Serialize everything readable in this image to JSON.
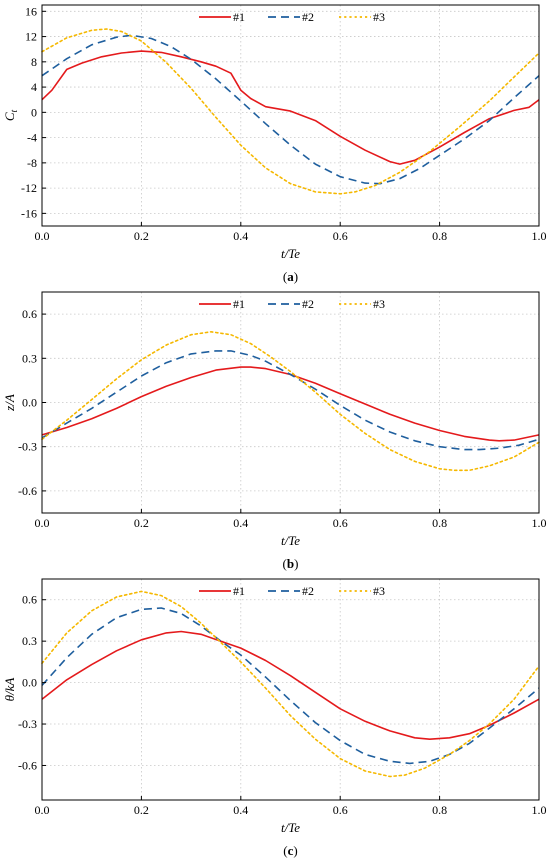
{
  "chart_data": [
    {
      "type": "line",
      "panel_label": "(a)",
      "panel_letter": "a",
      "xlabel": "t/Te",
      "ylabel": "C",
      "ylabel_sub": "t",
      "xlim": [
        0.0,
        1.0
      ],
      "ylim": [
        -18,
        17
      ],
      "xticks": [
        "0.0",
        "0.2",
        "0.4",
        "0.6",
        "0.8",
        "1.0"
      ],
      "yticks": [
        "16",
        "12",
        "8",
        "4",
        "0",
        "-4",
        "-8",
        "-12",
        "-16"
      ],
      "grid": true,
      "legend": "top-center",
      "series": [
        {
          "name": "#1",
          "color": "#e41a1c",
          "style": "solid",
          "x": [
            0.0,
            0.02,
            0.05,
            0.08,
            0.12,
            0.16,
            0.2,
            0.24,
            0.28,
            0.32,
            0.35,
            0.38,
            0.4,
            0.42,
            0.45,
            0.5,
            0.55,
            0.6,
            0.65,
            0.7,
            0.72,
            0.75,
            0.8,
            0.85,
            0.9,
            0.95,
            0.98,
            1.0
          ],
          "y": [
            2.0,
            3.5,
            6.8,
            7.8,
            8.8,
            9.4,
            9.7,
            9.5,
            8.8,
            8.0,
            7.3,
            6.2,
            3.5,
            2.2,
            0.9,
            0.2,
            -1.3,
            -3.8,
            -6.0,
            -7.8,
            -8.2,
            -7.6,
            -5.5,
            -3.2,
            -1.0,
            0.3,
            0.8,
            2.0
          ]
        },
        {
          "name": "#2",
          "color": "#1f5f9e",
          "style": "dashed",
          "x": [
            0.0,
            0.05,
            0.1,
            0.15,
            0.18,
            0.22,
            0.26,
            0.3,
            0.35,
            0.4,
            0.45,
            0.5,
            0.55,
            0.6,
            0.65,
            0.68,
            0.72,
            0.76,
            0.8,
            0.85,
            0.9,
            0.95,
            1.0
          ],
          "y": [
            5.8,
            8.5,
            10.7,
            11.9,
            12.2,
            11.7,
            10.4,
            8.4,
            5.3,
            1.8,
            -1.8,
            -5.2,
            -8.2,
            -10.2,
            -11.2,
            -11.3,
            -10.5,
            -8.9,
            -6.8,
            -4.2,
            -1.3,
            2.3,
            5.8
          ]
        },
        {
          "name": "#3",
          "color": "#f5b800",
          "style": "dotted",
          "x": [
            0.0,
            0.05,
            0.1,
            0.13,
            0.16,
            0.2,
            0.25,
            0.3,
            0.35,
            0.4,
            0.45,
            0.5,
            0.55,
            0.6,
            0.63,
            0.67,
            0.72,
            0.78,
            0.84,
            0.9,
            0.95,
            1.0
          ],
          "y": [
            9.6,
            11.8,
            13.0,
            13.2,
            12.8,
            11.3,
            7.9,
            3.8,
            -0.8,
            -5.2,
            -8.8,
            -11.3,
            -12.6,
            -12.9,
            -12.6,
            -11.6,
            -9.5,
            -6.2,
            -2.3,
            1.8,
            5.6,
            9.4
          ]
        }
      ]
    },
    {
      "type": "line",
      "panel_label": "(b)",
      "panel_letter": "b",
      "xlabel": "t/Te",
      "ylabel": "z/A",
      "ylabel_sub": "",
      "xlim": [
        0.0,
        1.0
      ],
      "ylim": [
        -0.75,
        0.75
      ],
      "xticks": [
        "0.0",
        "0.2",
        "0.4",
        "0.6",
        "0.8",
        "1.0"
      ],
      "yticks": [
        "0.6",
        "0.3",
        "0.0",
        "-0.3",
        "-0.6"
      ],
      "grid": true,
      "legend": "top-center",
      "series": [
        {
          "name": "#1",
          "color": "#e41a1c",
          "style": "solid",
          "x": [
            0.0,
            0.05,
            0.1,
            0.15,
            0.2,
            0.25,
            0.3,
            0.35,
            0.4,
            0.42,
            0.45,
            0.5,
            0.55,
            0.6,
            0.65,
            0.7,
            0.75,
            0.8,
            0.85,
            0.9,
            0.92,
            0.95,
            1.0
          ],
          "y": [
            -0.22,
            -0.17,
            -0.11,
            -0.04,
            0.04,
            0.11,
            0.17,
            0.22,
            0.24,
            0.24,
            0.23,
            0.19,
            0.13,
            0.06,
            -0.01,
            -0.08,
            -0.14,
            -0.19,
            -0.23,
            -0.255,
            -0.26,
            -0.255,
            -0.22
          ]
        },
        {
          "name": "#2",
          "color": "#1f5f9e",
          "style": "dashed",
          "x": [
            0.0,
            0.05,
            0.1,
            0.15,
            0.2,
            0.25,
            0.3,
            0.35,
            0.38,
            0.42,
            0.45,
            0.5,
            0.55,
            0.6,
            0.65,
            0.7,
            0.75,
            0.8,
            0.85,
            0.88,
            0.92,
            0.96,
            1.0
          ],
          "y": [
            -0.24,
            -0.14,
            -0.04,
            0.07,
            0.18,
            0.27,
            0.33,
            0.35,
            0.35,
            0.32,
            0.28,
            0.19,
            0.09,
            -0.02,
            -0.12,
            -0.2,
            -0.26,
            -0.3,
            -0.32,
            -0.32,
            -0.31,
            -0.29,
            -0.25
          ]
        },
        {
          "name": "#3",
          "color": "#f5b800",
          "style": "dotted",
          "x": [
            0.0,
            0.05,
            0.1,
            0.15,
            0.2,
            0.25,
            0.3,
            0.34,
            0.38,
            0.42,
            0.46,
            0.5,
            0.55,
            0.6,
            0.65,
            0.7,
            0.75,
            0.8,
            0.83,
            0.86,
            0.9,
            0.95,
            1.0
          ],
          "y": [
            -0.25,
            -0.12,
            0.02,
            0.16,
            0.29,
            0.39,
            0.46,
            0.48,
            0.46,
            0.4,
            0.31,
            0.21,
            0.07,
            -0.08,
            -0.21,
            -0.32,
            -0.4,
            -0.45,
            -0.46,
            -0.46,
            -0.43,
            -0.37,
            -0.27
          ]
        }
      ]
    },
    {
      "type": "line",
      "panel_label": "(c)",
      "panel_letter": "c",
      "xlabel": "t/Te",
      "ylabel": "θ/kA",
      "ylabel_sub": "",
      "xlim": [
        0.0,
        1.0
      ],
      "ylim": [
        -0.85,
        0.75
      ],
      "xticks": [
        "0.0",
        "0.2",
        "0.4",
        "0.6",
        "0.8",
        "1.0"
      ],
      "yticks": [
        "0.6",
        "0.3",
        "0.0",
        "-0.3",
        "-0.6"
      ],
      "grid": true,
      "legend": "top-center",
      "series": [
        {
          "name": "#1",
          "color": "#e41a1c",
          "style": "solid",
          "x": [
            0.0,
            0.05,
            0.1,
            0.15,
            0.2,
            0.25,
            0.28,
            0.32,
            0.36,
            0.4,
            0.45,
            0.5,
            0.55,
            0.6,
            0.65,
            0.7,
            0.75,
            0.78,
            0.82,
            0.86,
            0.9,
            0.95,
            1.0
          ],
          "y": [
            -0.12,
            0.02,
            0.13,
            0.23,
            0.31,
            0.36,
            0.37,
            0.35,
            0.3,
            0.25,
            0.16,
            0.05,
            -0.07,
            -0.19,
            -0.28,
            -0.35,
            -0.4,
            -0.41,
            -0.4,
            -0.37,
            -0.31,
            -0.22,
            -0.12
          ]
        },
        {
          "name": "#2",
          "color": "#1f5f9e",
          "style": "dashed",
          "x": [
            0.0,
            0.05,
            0.1,
            0.15,
            0.2,
            0.24,
            0.28,
            0.32,
            0.36,
            0.4,
            0.45,
            0.5,
            0.55,
            0.6,
            0.65,
            0.7,
            0.74,
            0.78,
            0.82,
            0.86,
            0.9,
            0.95,
            1.0
          ],
          "y": [
            -0.02,
            0.18,
            0.35,
            0.47,
            0.53,
            0.54,
            0.5,
            0.41,
            0.3,
            0.2,
            0.04,
            -0.13,
            -0.29,
            -0.42,
            -0.52,
            -0.57,
            -0.585,
            -0.57,
            -0.52,
            -0.44,
            -0.33,
            -0.19,
            -0.04
          ]
        },
        {
          "name": "#3",
          "color": "#f5b800",
          "style": "dotted",
          "x": [
            0.0,
            0.05,
            0.1,
            0.15,
            0.2,
            0.24,
            0.28,
            0.32,
            0.36,
            0.4,
            0.45,
            0.5,
            0.55,
            0.6,
            0.65,
            0.7,
            0.73,
            0.77,
            0.82,
            0.86,
            0.9,
            0.95,
            1.0
          ],
          "y": [
            0.14,
            0.36,
            0.52,
            0.62,
            0.66,
            0.63,
            0.55,
            0.43,
            0.29,
            0.15,
            -0.04,
            -0.24,
            -0.41,
            -0.55,
            -0.64,
            -0.68,
            -0.67,
            -0.62,
            -0.52,
            -0.42,
            -0.3,
            -0.12,
            0.12
          ]
        }
      ]
    }
  ]
}
